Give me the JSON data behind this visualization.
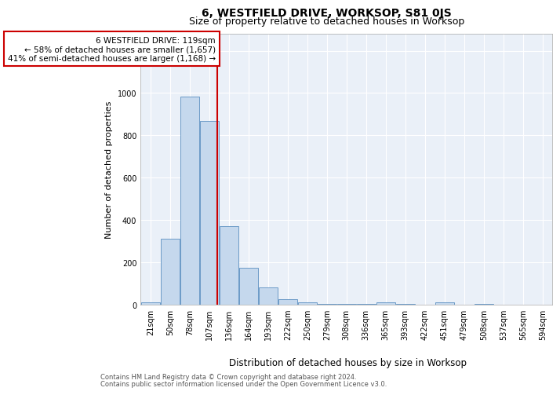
{
  "title": "6, WESTFIELD DRIVE, WORKSOP, S81 0JS",
  "subtitle": "Size of property relative to detached houses in Worksop",
  "xlabel": "Distribution of detached houses by size in Worksop",
  "ylabel": "Number of detached properties",
  "footnote1": "Contains HM Land Registry data © Crown copyright and database right 2024.",
  "footnote2": "Contains public sector information licensed under the Open Government Licence v3.0.",
  "annotation_line1": "6 WESTFIELD DRIVE: 119sqm",
  "annotation_line2": "← 58% of detached houses are smaller (1,657)",
  "annotation_line3": "41% of semi-detached houses are larger (1,168) →",
  "bar_labels": [
    "21sqm",
    "50sqm",
    "78sqm",
    "107sqm",
    "136sqm",
    "164sqm",
    "193sqm",
    "222sqm",
    "250sqm",
    "279sqm",
    "308sqm",
    "336sqm",
    "365sqm",
    "393sqm",
    "422sqm",
    "451sqm",
    "479sqm",
    "508sqm",
    "537sqm",
    "565sqm",
    "594sqm"
  ],
  "bar_values": [
    10,
    310,
    985,
    870,
    370,
    175,
    83,
    27,
    12,
    5,
    3,
    2,
    10,
    2,
    1,
    12,
    1,
    2,
    1,
    1,
    1
  ],
  "bar_color": "#c5d8ed",
  "bar_edgecolor": "#5a8fc0",
  "bar_linewidth": 0.6,
  "marker_color": "#cc0000",
  "ylim": [
    0,
    1280
  ],
  "yticks": [
    0,
    200,
    400,
    600,
    800,
    1000,
    1200
  ],
  "background_color": "#eaf0f8",
  "grid_color": "#ffffff",
  "title_fontsize": 10,
  "subtitle_fontsize": 9,
  "ylabel_fontsize": 8,
  "xlabel_fontsize": 8.5,
  "tick_fontsize": 7,
  "annotation_fontsize": 7.5,
  "footnote_fontsize": 6
}
